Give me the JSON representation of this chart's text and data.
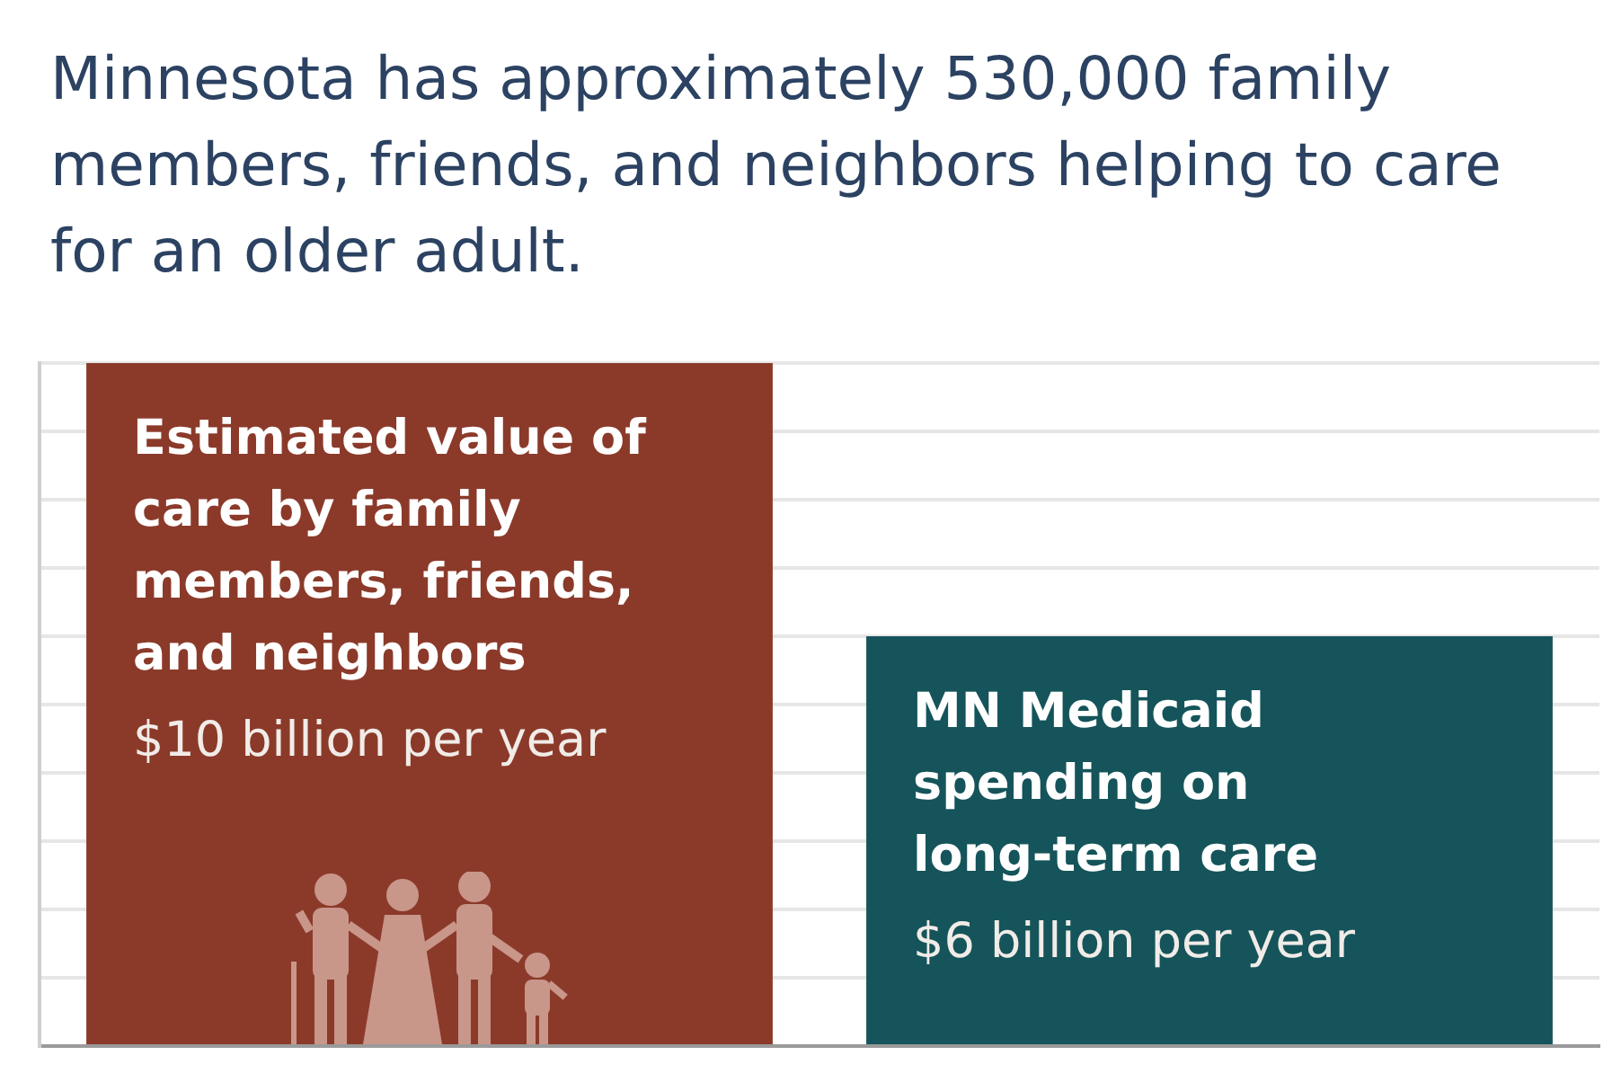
{
  "chart_data": {
    "type": "bar",
    "title": "Minnesota has approximately 530,000 family members, friends, and neighbors helping to care for an older adult.",
    "categories": [
      "Estimated value of care by family members, friends, and neighbors",
      "MN Medicaid spending on long-term care"
    ],
    "values": [
      10,
      6
    ],
    "colors": [
      "#8b3a2a",
      "#15545a"
    ],
    "value_labels": [
      "$10 billion per year",
      "$6 billion per year"
    ],
    "ylim": [
      0,
      10
    ],
    "yticks": [
      {
        "value": 0,
        "label": null
      },
      {
        "value": 1,
        "label": null
      },
      {
        "value": 2,
        "label": null
      },
      {
        "value": 3,
        "label": null
      },
      {
        "value": 4,
        "label": null
      },
      {
        "value": 5,
        "label": null
      },
      {
        "value": 6,
        "label": null
      },
      {
        "value": 7,
        "label": null
      },
      {
        "value": 8,
        "label": null
      },
      {
        "value": 9,
        "label": null
      },
      {
        "value": 10,
        "label": null
      }
    ],
    "grid": "y",
    "tick_labels": false,
    "legend": false
  }
}
